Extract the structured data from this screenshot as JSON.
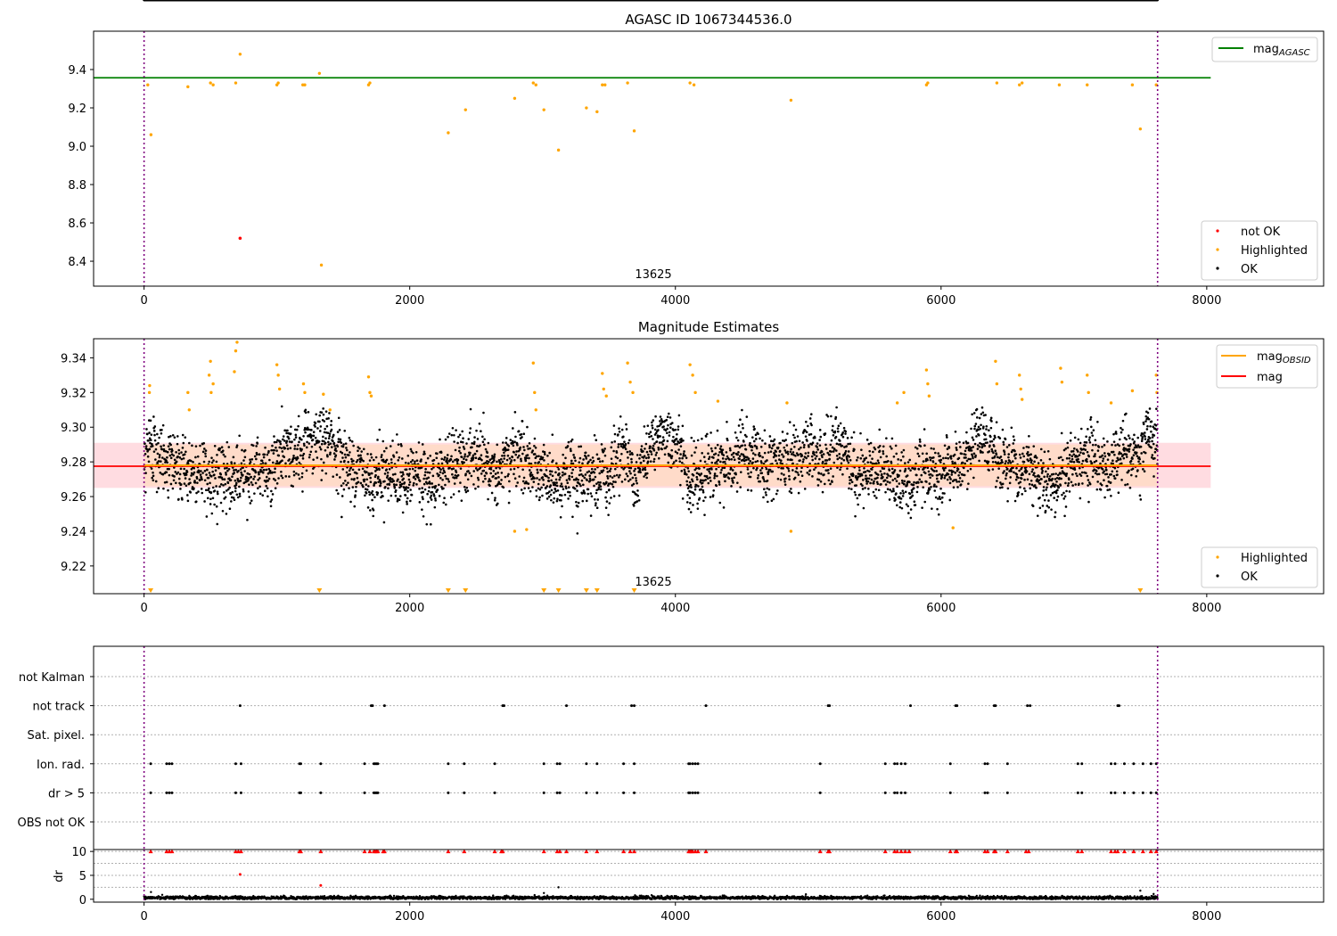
{
  "chart_data": [
    {
      "type": "scatter",
      "title": "AGASC ID 1067344536.0",
      "xlim": [
        -380,
        8880
      ],
      "ylim": [
        8.27,
        9.6
      ],
      "xticks": [
        "0",
        "2000",
        "4000",
        "6000",
        "8000"
      ],
      "yticks": [
        "8.4",
        "8.6",
        "8.8",
        "9.0",
        "9.2",
        "9.4"
      ],
      "obsid_label": "13625",
      "obs_bounds": [
        0,
        7630
      ],
      "reference_lines": [
        {
          "name": "mag",
          "subscript": "AGASC",
          "y": 9.357,
          "x_range": [
            -380,
            8030
          ],
          "color": "#008000"
        }
      ],
      "ok_band": {
        "center": 9.28,
        "half_width": 0.012
      },
      "series": [
        {
          "name": "not OK",
          "color": "#ff0000",
          "points": [
            [
              723,
              8.52
            ]
          ]
        },
        {
          "name": "Highlighted",
          "color": "#ffa500",
          "points": [
            [
              28,
              9.32
            ],
            [
              52,
              9.06
            ],
            [
              330,
              9.31
            ],
            [
              500,
              9.33
            ],
            [
              520,
              9.32
            ],
            [
              690,
              9.33
            ],
            [
              723,
              9.48
            ],
            [
              1000,
              9.32
            ],
            [
              1010,
              9.33
            ],
            [
              1195,
              9.32
            ],
            [
              1210,
              9.32
            ],
            [
              1320,
              9.38
            ],
            [
              1335,
              8.38
            ],
            [
              1690,
              9.32
            ],
            [
              1700,
              9.33
            ],
            [
              2290,
              9.07
            ],
            [
              2420,
              9.19
            ],
            [
              2790,
              9.25
            ],
            [
              2930,
              9.33
            ],
            [
              2950,
              9.32
            ],
            [
              3010,
              9.19
            ],
            [
              3120,
              8.98
            ],
            [
              3330,
              9.2
            ],
            [
              3410,
              9.18
            ],
            [
              3450,
              9.32
            ],
            [
              3470,
              9.32
            ],
            [
              3640,
              9.33
            ],
            [
              3690,
              9.08
            ],
            [
              4110,
              9.33
            ],
            [
              4140,
              9.32
            ],
            [
              4870,
              9.24
            ],
            [
              5890,
              9.32
            ],
            [
              5900,
              9.33
            ],
            [
              6420,
              9.33
            ],
            [
              6590,
              9.32
            ],
            [
              6610,
              9.33
            ],
            [
              6890,
              9.32
            ],
            [
              7100,
              9.32
            ],
            [
              7440,
              9.32
            ],
            [
              7500,
              9.09
            ],
            [
              7620,
              9.32
            ]
          ]
        },
        {
          "name": "OK",
          "color": "#000000",
          "band": {
            "y": 9.28,
            "spread": 0.03
          },
          "points": "dense points along obs range"
        }
      ],
      "legends": [
        {
          "placement": "upper right",
          "entries": [
            "mag_AGASC"
          ]
        },
        {
          "placement": "lower right",
          "entries": [
            "not OK",
            "Highlighted",
            "OK"
          ]
        }
      ]
    },
    {
      "type": "scatter",
      "title": "Magnitude Estimates",
      "xlim": [
        -380,
        8880
      ],
      "ylim": [
        9.204,
        9.351
      ],
      "xticks": [
        "0",
        "2000",
        "4000",
        "6000",
        "8000"
      ],
      "yticks": [
        "9.22",
        "9.24",
        "9.26",
        "9.28",
        "9.30",
        "9.32",
        "9.34"
      ],
      "obsid_label": "13625",
      "obs_bounds": [
        0,
        7630
      ],
      "reference_lines": [
        {
          "name": "mag",
          "subscript": "OBSID",
          "y": 9.278,
          "x_range": [
            0,
            7630
          ],
          "color": "#ffa500"
        },
        {
          "name": "mag",
          "y": 9.2775,
          "x_range": [
            0,
            8030
          ],
          "color": "#ff0000"
        }
      ],
      "uncertainty_bands": [
        {
          "y_range": [
            9.265,
            9.291
          ],
          "x_range": [
            -380,
            8030
          ],
          "color": "#ffc0c8"
        },
        {
          "y_range": [
            9.266,
            9.29
          ],
          "x_range": [
            0,
            7630
          ],
          "color": "#ffdab9"
        }
      ],
      "out_of_range_markers_x": [
        50,
        1320,
        2290,
        2420,
        3010,
        3120,
        3330,
        3410,
        3690,
        7500
      ],
      "series": [
        {
          "name": "Highlighted",
          "color": "#ffa500",
          "points": [
            [
              40,
              9.32
            ],
            [
              42,
              9.324
            ],
            [
              330,
              9.32
            ],
            [
              340,
              9.31
            ],
            [
              490,
              9.33
            ],
            [
              500,
              9.338
            ],
            [
              505,
              9.32
            ],
            [
              520,
              9.325
            ],
            [
              680,
              9.332
            ],
            [
              690,
              9.344
            ],
            [
              700,
              9.349
            ],
            [
              1000,
              9.336
            ],
            [
              1010,
              9.33
            ],
            [
              1020,
              9.322
            ],
            [
              1200,
              9.325
            ],
            [
              1210,
              9.32
            ],
            [
              1350,
              9.319
            ],
            [
              1400,
              9.31
            ],
            [
              1690,
              9.329
            ],
            [
              1700,
              9.32
            ],
            [
              1710,
              9.318
            ],
            [
              2930,
              9.337
            ],
            [
              2940,
              9.32
            ],
            [
              2950,
              9.31
            ],
            [
              3450,
              9.331
            ],
            [
              3460,
              9.322
            ],
            [
              3480,
              9.318
            ],
            [
              3640,
              9.337
            ],
            [
              3660,
              9.326
            ],
            [
              3680,
              9.32
            ],
            [
              4110,
              9.336
            ],
            [
              4130,
              9.33
            ],
            [
              4150,
              9.32
            ],
            [
              4320,
              9.315
            ],
            [
              4840,
              9.314
            ],
            [
              4870,
              9.24
            ],
            [
              5670,
              9.314
            ],
            [
              5720,
              9.32
            ],
            [
              5890,
              9.333
            ],
            [
              5900,
              9.325
            ],
            [
              5910,
              9.318
            ],
            [
              6090,
              9.242
            ],
            [
              6410,
              9.338
            ],
            [
              6420,
              9.325
            ],
            [
              6590,
              9.33
            ],
            [
              6600,
              9.322
            ],
            [
              6610,
              9.316
            ],
            [
              6900,
              9.334
            ],
            [
              6910,
              9.326
            ],
            [
              7100,
              9.33
            ],
            [
              7110,
              9.32
            ],
            [
              7280,
              9.314
            ],
            [
              7440,
              9.321
            ],
            [
              7620,
              9.33
            ],
            [
              7625,
              9.32
            ],
            [
              2790,
              9.24
            ],
            [
              2880,
              9.241
            ]
          ]
        },
        {
          "name": "OK",
          "color": "#000000",
          "band": {
            "y": 9.278,
            "spread": 0.012
          },
          "points": "dense points along obs range"
        }
      ],
      "legends": [
        {
          "placement": "upper right",
          "entries": [
            "mag_OBSID",
            "mag"
          ]
        },
        {
          "placement": "lower right",
          "entries": [
            "Highlighted",
            "OK"
          ]
        }
      ]
    },
    {
      "type": "scatter",
      "title": "",
      "xlim": [
        -380,
        8880
      ],
      "xticks": [
        "0",
        "2000",
        "4000",
        "6000",
        "8000"
      ],
      "obs_bounds": [
        0,
        7630
      ],
      "flag_rows": [
        "not Kalman",
        "not track",
        "Sat. pixel.",
        "Ion. rad.",
        "dr > 5",
        "OBS not OK"
      ],
      "flag_events": {
        "not track": [
          723,
          1710,
          1720,
          1810,
          2700,
          2710,
          3180,
          3670,
          3690,
          4230,
          5150,
          5160,
          5770,
          6110,
          6120,
          6400,
          6410,
          6650,
          6670,
          7330,
          7340
        ],
        "Ion. rad.": [
          50,
          170,
          190,
          210,
          690,
          730,
          1170,
          1180,
          1330,
          1660,
          1730,
          1740,
          1750,
          1760,
          2290,
          2410,
          2640,
          3010,
          3110,
          3130,
          3330,
          3410,
          3610,
          3690,
          4100,
          4110,
          4130,
          4150,
          4170,
          5090,
          5580,
          5650,
          5670,
          5700,
          5730,
          6070,
          6330,
          6350,
          6500,
          7030,
          7060,
          7280,
          7310,
          7380,
          7450,
          7520,
          7580,
          7620
        ],
        "dr > 5": [
          50,
          170,
          190,
          210,
          690,
          730,
          1170,
          1180,
          1330,
          1660,
          1730,
          1740,
          1750,
          1760,
          2290,
          2410,
          2640,
          3010,
          3110,
          3130,
          3330,
          3410,
          3610,
          3690,
          4100,
          4110,
          4130,
          4150,
          4170,
          5090,
          5580,
          5650,
          5670,
          5700,
          5730,
          6070,
          6330,
          6350,
          6500,
          7030,
          7060,
          7280,
          7310,
          7380,
          7450,
          7520,
          7580,
          7620
        ]
      }
    },
    {
      "type": "scatter",
      "title": "",
      "ylabel": "dr",
      "xlim": [
        -380,
        8880
      ],
      "ylim": [
        -0.6,
        10.4
      ],
      "xticks": [
        "0",
        "2000",
        "4000",
        "6000",
        "8000"
      ],
      "yticks": [
        "0",
        "5",
        "10"
      ],
      "obs_bounds": [
        0,
        7630
      ],
      "series": [
        {
          "name": "dr clipped",
          "color": "#ff0000",
          "marker": "triangle",
          "y": 10,
          "x": [
            50,
            170,
            190,
            210,
            690,
            710,
            730,
            1170,
            1180,
            1330,
            1660,
            1700,
            1730,
            1740,
            1750,
            1760,
            1800,
            1810,
            2290,
            2410,
            2640,
            2690,
            2700,
            3010,
            3110,
            3130,
            3180,
            3330,
            3410,
            3610,
            3660,
            3690,
            4100,
            4110,
            4120,
            4130,
            4150,
            4170,
            4230,
            5090,
            5150,
            5160,
            5580,
            5650,
            5670,
            5700,
            5730,
            5760,
            6070,
            6110,
            6120,
            6330,
            6350,
            6400,
            6410,
            6500,
            6640,
            6660,
            7030,
            7060,
            7280,
            7310,
            7330,
            7380,
            7450,
            7520,
            7580,
            7620
          ]
        },
        {
          "name": "dr outliers",
          "color": "#ff0000",
          "points": [
            [
              723,
              5.2
            ],
            [
              1330,
              2.9
            ]
          ]
        },
        {
          "name": "dr",
          "color": "#000000",
          "band": {
            "y": 0.3,
            "spread": 0.25
          },
          "points": [
            [
              52,
              1.5
            ],
            [
              3120,
              2.5
            ],
            [
              3010,
              1.3
            ],
            [
              7500,
              1.8
            ],
            [
              7600,
              1.1
            ]
          ]
        }
      ]
    }
  ]
}
